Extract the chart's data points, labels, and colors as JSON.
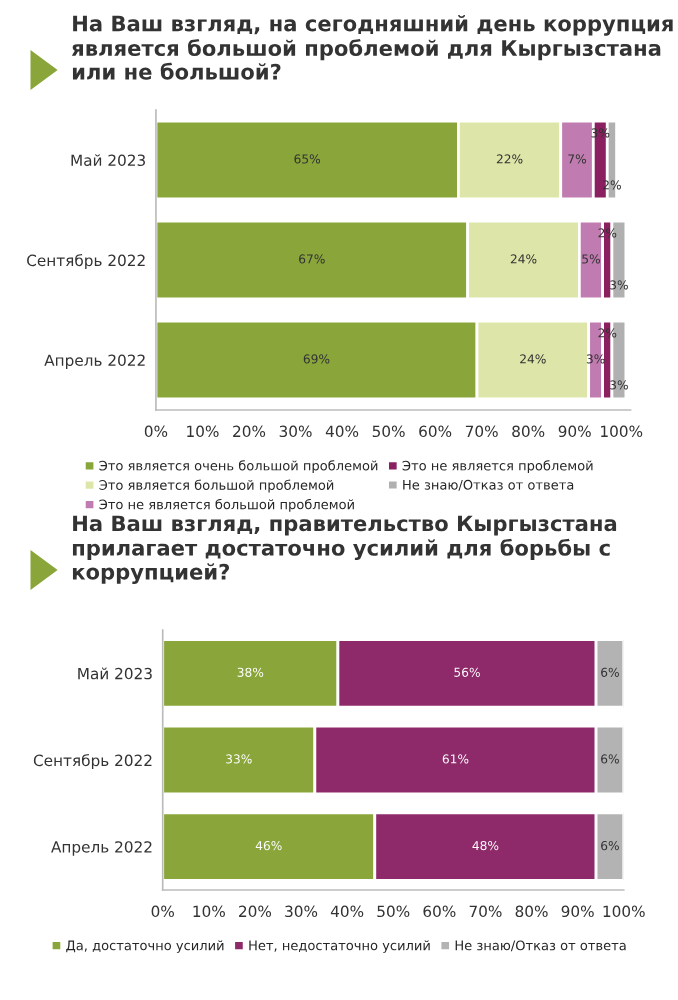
{
  "chart_data": [
    {
      "type": "bar",
      "orientation": "horizontal",
      "stacked": true,
      "title": "На Ваш взгляд, на сегодняшний день коррупция является большой проблемой для Кыргызстана или не большой?",
      "categories": [
        "Май 2023",
        "Сентябрь 2022",
        "Апрель 2022"
      ],
      "series": [
        {
          "name": "Это является очень большой проблемой",
          "color": "#8aa63a",
          "values": [
            65,
            67,
            69
          ],
          "value_labels": [
            "65%",
            "67%",
            "69%"
          ]
        },
        {
          "name": "Это является большой проблемой",
          "color": "#dde6a8",
          "values": [
            22,
            24,
            24
          ],
          "value_labels": [
            "22%",
            "24%",
            "24%"
          ]
        },
        {
          "name": "Это не является большой проблемой",
          "color": "#c07bb0",
          "values": [
            7,
            5,
            3
          ],
          "value_labels": [
            "7%",
            "5%",
            "3%"
          ]
        },
        {
          "name": "Это не является проблемой",
          "color": "#8b2060",
          "values": [
            3,
            2,
            2
          ],
          "value_labels": [
            "3%",
            "2%",
            "2%"
          ]
        },
        {
          "name": "Не знаю/Отказ от ответа",
          "color": "#b0b0b0",
          "values": [
            2,
            3,
            3
          ],
          "value_labels": [
            "2%",
            "3%",
            "3%"
          ]
        }
      ],
      "xlim": [
        0,
        102
      ],
      "xticks": [
        {
          "value": 0,
          "label": "0%"
        },
        {
          "value": 10,
          "label": "10%"
        },
        {
          "value": 20,
          "label": "20%"
        },
        {
          "value": 30,
          "label": "30%"
        },
        {
          "value": 40,
          "label": "40%"
        },
        {
          "value": 50,
          "label": "50%"
        },
        {
          "value": 60,
          "label": "60%"
        },
        {
          "value": 70,
          "label": "70%"
        },
        {
          "value": 80,
          "label": "80%"
        },
        {
          "value": 90,
          "label": "90%"
        },
        {
          "value": 100,
          "label": "100%"
        }
      ],
      "legend": "bottom",
      "grid": false
    },
    {
      "type": "bar",
      "orientation": "horizontal",
      "stacked": true,
      "title": "На Ваш взгляд, правительство Кыргызстана прилагает достаточно усилий для борьбы с коррупцией?",
      "categories": [
        "Май 2023",
        "Сентябрь 2022",
        "Апрель 2022"
      ],
      "series": [
        {
          "name": "Да, достаточно усилий",
          "color": "#8aa63a",
          "values": [
            38,
            33,
            46
          ],
          "value_labels": [
            "38%",
            "33%",
            "46%"
          ]
        },
        {
          "name": "Нет, недостаточно усилий",
          "color": "#8e2a6a",
          "values": [
            56,
            61,
            48
          ],
          "value_labels": [
            "56%",
            "61%",
            "48%"
          ]
        },
        {
          "name": "Не знаю/Отказ от ответа",
          "color": "#b3b3b3",
          "values": [
            6,
            6,
            6
          ],
          "value_labels": [
            "6%",
            "6%",
            "6%"
          ]
        }
      ],
      "xlim": [
        0,
        100
      ],
      "xticks": [
        {
          "value": 0,
          "label": "0%"
        },
        {
          "value": 10,
          "label": "10%"
        },
        {
          "value": 20,
          "label": "20%"
        },
        {
          "value": 30,
          "label": "30%"
        },
        {
          "value": 40,
          "label": "40%"
        },
        {
          "value": 50,
          "label": "50%"
        },
        {
          "value": 60,
          "label": "60%"
        },
        {
          "value": 70,
          "label": "70%"
        },
        {
          "value": 80,
          "label": "80%"
        },
        {
          "value": 90,
          "label": "90%"
        },
        {
          "value": 100,
          "label": "100%"
        }
      ],
      "legend": "bottom",
      "grid": false
    }
  ]
}
